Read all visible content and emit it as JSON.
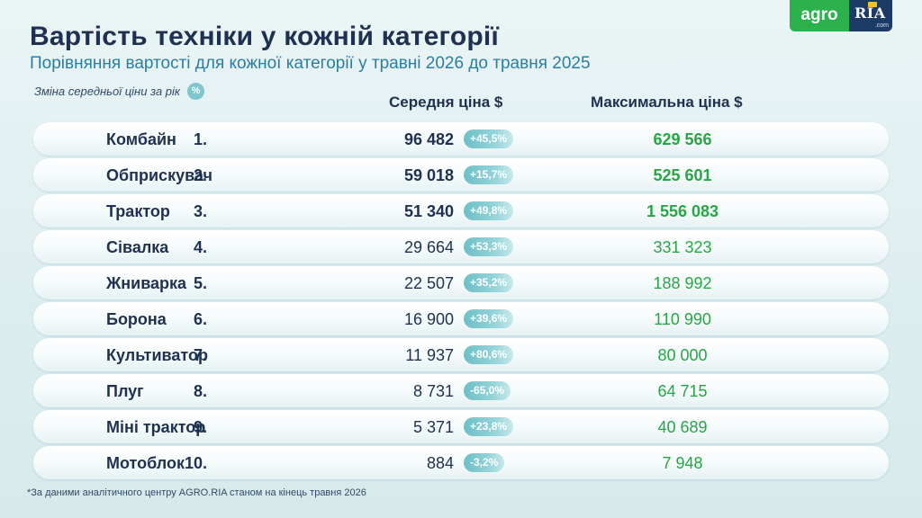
{
  "title": "Вартість техніки у кожній категорії",
  "subtitle": "Порівняння вартості для кожної категорії у травні 2026 до травня 2025",
  "change_note": "Зміна середньої ціни за рік",
  "change_note_icon": "%",
  "columns": {
    "avg_price": "Середня ціна $",
    "max_price": "Максимальна ціна $"
  },
  "logo": {
    "agro": "agro",
    "ria": "RIA",
    "ria_sub": ".com"
  },
  "footnote": "*За даними аналітичного центру AGRO.RIA станом на кінець травня 2026",
  "colors": {
    "title": "#1e3150",
    "subtitle": "#2a7fa0",
    "max_price": "#27a646",
    "badge": "#7fc6cc",
    "logo_agro": "#2bb24c",
    "logo_ria": "#1c3a66"
  },
  "chart_data": {
    "type": "table",
    "title": "Вартість техніки у кожній категорії",
    "subtitle": "Порівняння вартості для кожної категорії у травні 2026 до травня 2025",
    "columns": [
      "Середня ціна $",
      "Зміна середньої ціни за рік",
      "Максимальна ціна $"
    ],
    "rows": [
      {
        "rank": "1.",
        "name": "Комбайн",
        "avg": "96 482",
        "change": "+45,5%",
        "max": "629 566"
      },
      {
        "rank": "2.",
        "name": "Обприскувач",
        "avg": "59 018",
        "change": "+15,7%",
        "max": "525 601"
      },
      {
        "rank": "3.",
        "name": "Трактор",
        "avg": "51 340",
        "change": "+49,8%",
        "max": "1 556 083"
      },
      {
        "rank": "4.",
        "name": "Сівалка",
        "avg": "29 664",
        "change": "+53,3%",
        "max": "331 323"
      },
      {
        "rank": "5.",
        "name": "Жниварка",
        "avg": "22 507",
        "change": "+35,2%",
        "max": "188 992"
      },
      {
        "rank": "6.",
        "name": "Борона",
        "avg": "16 900",
        "change": "+39,6%",
        "max": "110 990"
      },
      {
        "rank": "7.",
        "name": "Культиватор",
        "avg": "11 937",
        "change": "+80,6%",
        "max": "80 000"
      },
      {
        "rank": "8.",
        "name": "Плуг",
        "avg": "8 731",
        "change": "-65,0%",
        "max": "64 715"
      },
      {
        "rank": "9.",
        "name": "Міні трактор",
        "avg": "5 371",
        "change": "+23,8%",
        "max": "40 689"
      },
      {
        "rank": "10.",
        "name": "Мотоблок",
        "avg": "884",
        "change": "-3,2%",
        "max": "7 948"
      }
    ],
    "highlighted_top": 3
  }
}
